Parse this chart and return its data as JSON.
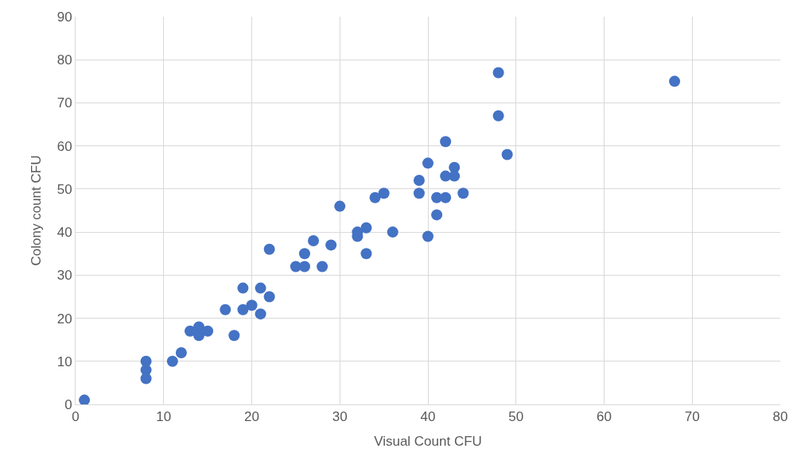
{
  "chart_data": {
    "type": "scatter",
    "xlabel": "Visual Count CFU",
    "ylabel": "Colony count CFU",
    "x": [
      1,
      8,
      8,
      8,
      11,
      12,
      13,
      14,
      14,
      15,
      17,
      18,
      19,
      19,
      20,
      21,
      21,
      22,
      22,
      25,
      26,
      26,
      27,
      28,
      29,
      30,
      32,
      32,
      33,
      33,
      34,
      35,
      36,
      39,
      39,
      40,
      40,
      41,
      41,
      42,
      42,
      42,
      43,
      43,
      44,
      48,
      48,
      49,
      68
    ],
    "values": [
      1,
      10,
      8,
      6,
      10,
      12,
      17,
      18,
      16,
      17,
      22,
      16,
      27,
      22,
      23,
      27,
      21,
      36,
      25,
      32,
      35,
      32,
      38,
      32,
      37,
      46,
      40,
      39,
      41,
      35,
      48,
      49,
      40,
      52,
      49,
      56,
      39,
      48,
      44,
      61,
      53,
      48,
      55,
      53,
      49,
      77,
      67,
      58,
      75
    ],
    "color": "#4472c4",
    "marker": "circle",
    "xlim": [
      0,
      80
    ],
    "xticks": [
      0,
      10,
      20,
      30,
      40,
      50,
      60,
      70,
      80
    ],
    "ylim": [
      0,
      90
    ],
    "yticks": [
      0,
      10,
      20,
      30,
      40,
      50,
      60,
      70,
      80,
      90
    ],
    "grid": true
  }
}
